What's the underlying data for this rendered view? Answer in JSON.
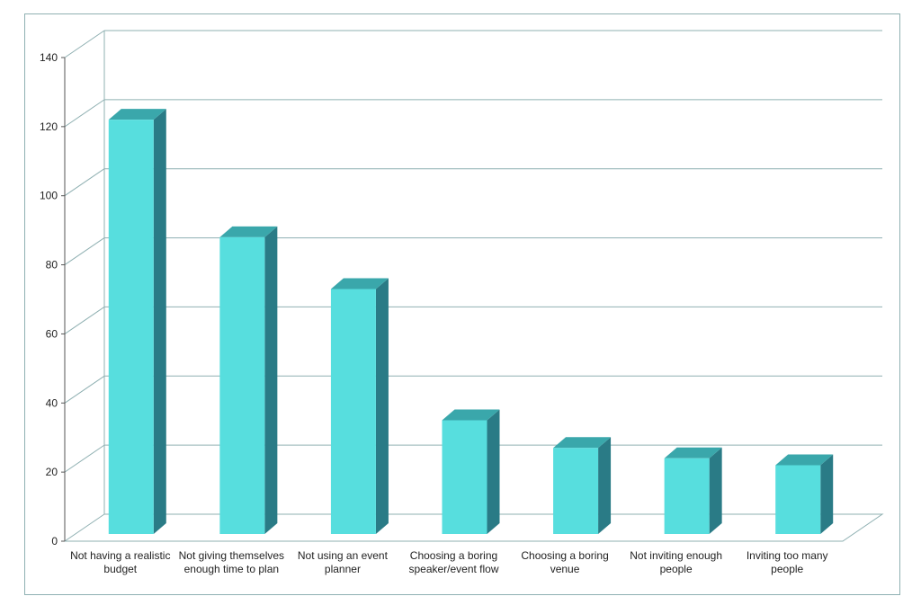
{
  "chart_data": {
    "type": "bar",
    "title": "",
    "xlabel": "",
    "ylabel": "",
    "categories": [
      "Not having a realistic budget",
      "Not giving themselves enough time to plan",
      "Not using an event planner",
      "Choosing a boring speaker/event flow",
      "Choosing a boring venue",
      "Not inviting enough people",
      "Inviting too many people"
    ],
    "values": [
      122,
      88,
      73,
      35,
      27,
      24,
      22
    ],
    "ylim": [
      0,
      140
    ],
    "yticks": [
      "0",
      "20",
      "40",
      "60",
      "80",
      "100",
      "120",
      "140"
    ],
    "grid": true,
    "legend": "none",
    "style": "3d-column",
    "colors": {
      "bar_front": "#57dede",
      "bar_side": "#2a7b86",
      "bar_top": "#3aa7ab",
      "grid": "#8fb0b2"
    }
  }
}
